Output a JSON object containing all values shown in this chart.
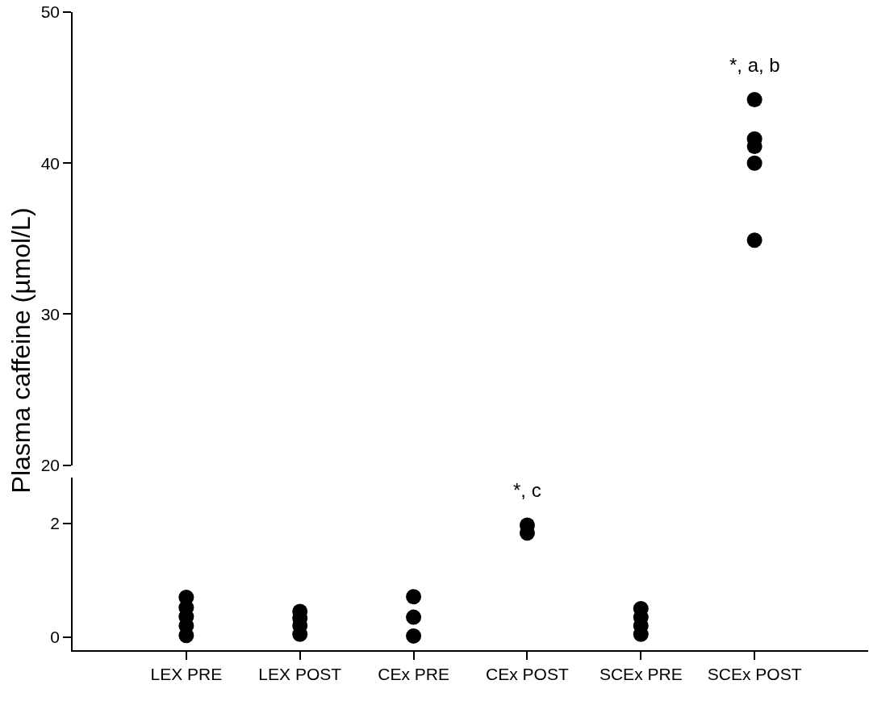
{
  "chart_data": [
    {
      "type": "scatter",
      "ylabel": "Plasma caffeine (µmol/L)",
      "categories": [
        "LEX PRE",
        "LEX POST",
        "CEx PRE",
        "CEx POST",
        "SCEx PRE",
        "SCEx POST"
      ],
      "tick_labels": "y",
      "ylim": [
        20,
        50
      ],
      "yticks": [
        20,
        30,
        40,
        50
      ],
      "marker": "circle",
      "series": [
        {
          "color": "#000000",
          "x": [
            "SCEx POST",
            "SCEx POST",
            "SCEx POST",
            "SCEx POST",
            "SCEx POST"
          ],
          "values": [
            44.2,
            41.6,
            41.1,
            40.0,
            34.9
          ]
        }
      ],
      "annotations": [
        {
          "text": "*, a, b",
          "x": "SCEx POST",
          "y": 44.2
        }
      ]
    },
    {
      "type": "scatter",
      "categories": [
        "LEX PRE",
        "LEX POST",
        "CEx PRE",
        "CEx POST",
        "SCEx PRE",
        "SCEx POST"
      ],
      "ylim": [
        -0.23,
        2.8
      ],
      "yticks": [
        0,
        2
      ],
      "marker": "circle",
      "series": [
        {
          "color": "#000000",
          "x": [
            "LEX PRE",
            "LEX PRE",
            "LEX PRE",
            "LEX PRE",
            "LEX PRE",
            "LEX POST",
            "LEX POST",
            "LEX POST",
            "LEX POST",
            "CEx PRE",
            "CEx PRE",
            "CEx PRE",
            "CEx POST",
            "CEx POST",
            "SCEx PRE",
            "SCEx PRE",
            "SCEx PRE",
            "SCEx PRE"
          ],
          "values": [
            0.7,
            0.52,
            0.36,
            0.2,
            0.03,
            0.45,
            0.33,
            0.2,
            0.05,
            0.71,
            0.35,
            0.02,
            1.97,
            1.83,
            0.5,
            0.35,
            0.2,
            0.05
          ]
        }
      ],
      "annotations": [
        {
          "text": "*, c",
          "x": "CEx POST",
          "y": 1.97
        }
      ]
    }
  ]
}
